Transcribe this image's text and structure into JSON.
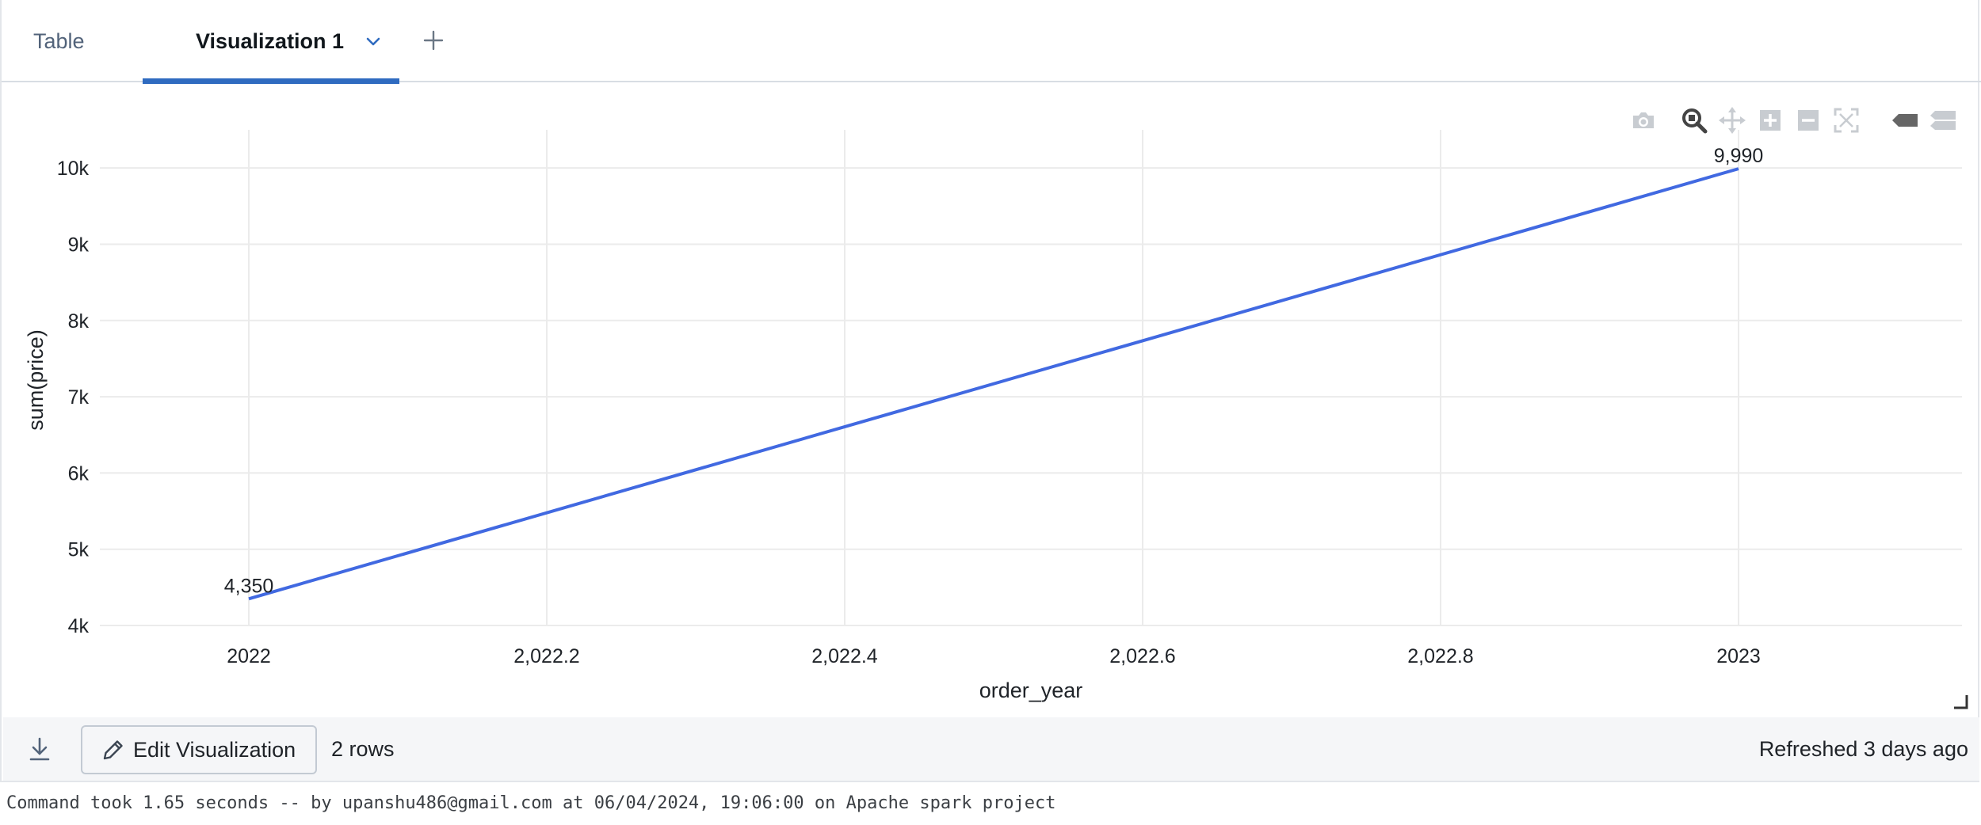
{
  "tabs": {
    "table_label": "Table",
    "viz_label": "Visualization 1"
  },
  "modebar": [
    "camera-icon",
    "zoom-icon",
    "pan-icon",
    "zoom-in-icon",
    "zoom-out-icon",
    "autoscale-icon",
    "hover-closest-icon",
    "hover-compare-icon"
  ],
  "colors": {
    "accent": "#2f6bc0",
    "line": "#4169e1"
  },
  "chart_data": {
    "type": "line",
    "xlabel": "order_year",
    "ylabel": "sum(price)",
    "x": [
      2022,
      2023
    ],
    "series": [
      {
        "values": [
          4350,
          9990
        ],
        "labels": [
          "4,350",
          "9,990"
        ]
      }
    ],
    "xlim": [
      2021.9,
      2023.15
    ],
    "ylim": [
      4000,
      10500
    ],
    "xticks": [
      2022,
      2022.2,
      2022.4,
      2022.6,
      2022.8,
      2023
    ],
    "xtick_labels": [
      "2022",
      "2,022.2",
      "2,022.4",
      "2,022.6",
      "2,022.8",
      "2023"
    ],
    "yticks": [
      4000,
      5000,
      6000,
      7000,
      8000,
      9000,
      10000
    ],
    "ytick_labels": [
      "4k",
      "5k",
      "6k",
      "7k",
      "8k",
      "9k",
      "10k"
    ],
    "grid": true,
    "legend": "none"
  },
  "footer": {
    "edit_label": "Edit Visualization",
    "rows": "2 rows",
    "refreshed": "Refreshed 3 days ago"
  },
  "status_line": "Command took 1.65 seconds -- by upanshu486@gmail.com at 06/04/2024, 19:06:00 on Apache spark project"
}
